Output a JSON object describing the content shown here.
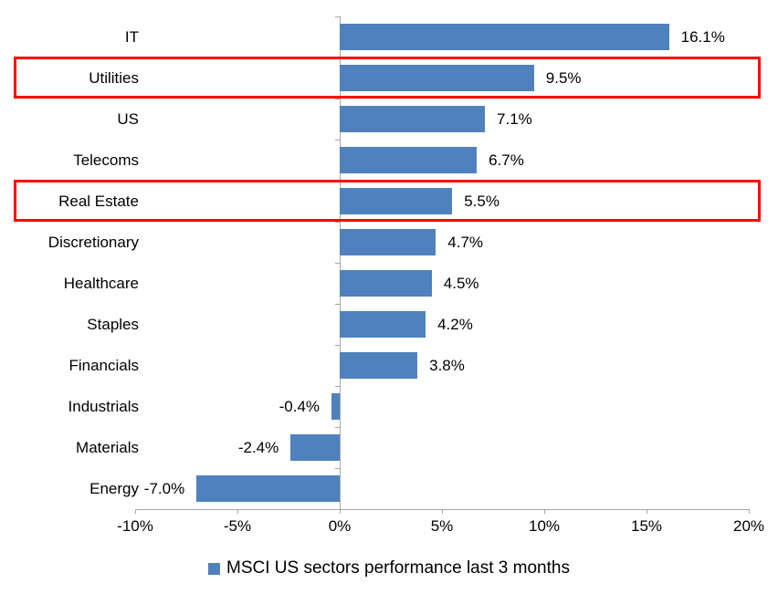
{
  "chart_data": {
    "type": "bar",
    "orientation": "horizontal",
    "title": "",
    "categories": [
      "IT",
      "Utilities",
      "US",
      "Telecoms",
      "Real Estate",
      "Discretionary",
      "Healthcare",
      "Staples",
      "Financials",
      "Industrials",
      "Materials",
      "Energy"
    ],
    "values": [
      16.1,
      9.5,
      7.1,
      6.7,
      5.5,
      4.7,
      4.5,
      4.2,
      3.8,
      -0.4,
      -2.4,
      -7.0
    ],
    "value_labels": [
      "16.1%",
      "9.5%",
      "7.1%",
      "6.7%",
      "5.5%",
      "4.7%",
      "4.5%",
      "4.2%",
      "3.8%",
      "-0.4%",
      "-2.4%",
      "-7.0%"
    ],
    "highlighted_categories": [
      "Utilities",
      "Real Estate"
    ],
    "x_axis": {
      "min": -10,
      "max": 20,
      "step": 5,
      "tick_labels": [
        "-10%",
        "-5%",
        "0%",
        "5%",
        "10%",
        "15%",
        "20%"
      ]
    },
    "legend": {
      "label": "MSCI US sectors performance last 3 months",
      "position": "bottom-center"
    },
    "colors": {
      "bar": "#4f81bd",
      "highlight_box": "#ff0000",
      "axis": "#a6a6a6",
      "text": "#000000",
      "background": "#ffffff"
    },
    "grid": false
  }
}
